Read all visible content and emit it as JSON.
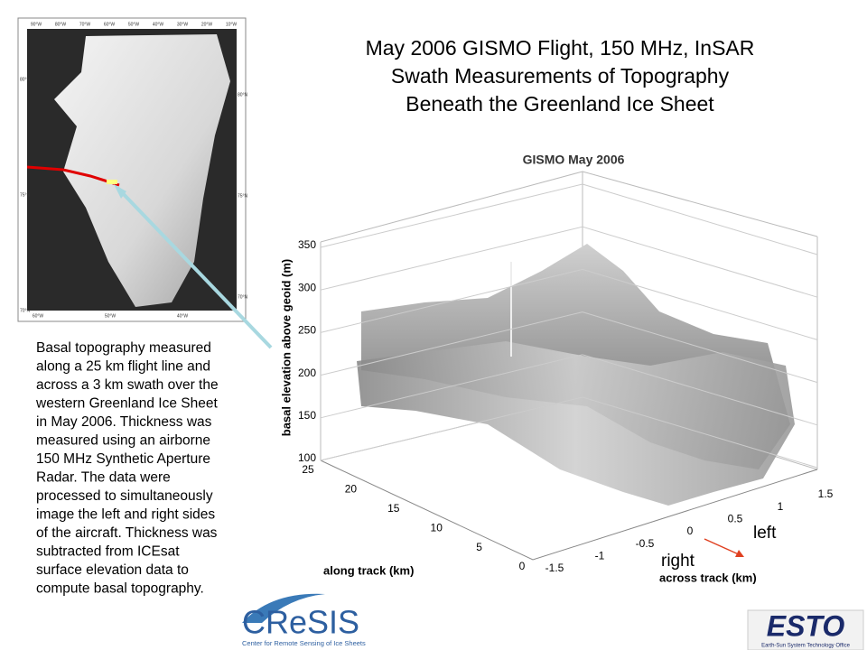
{
  "title": [
    "May 2006 GISMO Flight, 150 MHz, InSAR",
    "Swath Measurements of Topography",
    "Beneath the Greenland Ice Sheet"
  ],
  "map": {
    "top_labels": [
      "90°W",
      "80°W",
      "70°W",
      "60°W",
      "50°W",
      "40°W",
      "30°W",
      "20°W",
      "10°W"
    ],
    "left_labels": [
      "80°N",
      "75°N",
      "70°N"
    ],
    "right_labels": [
      "80°N",
      "75°N",
      "70°N"
    ],
    "bottom_labels": [
      "60°W",
      "50°W",
      "40°W"
    ]
  },
  "plot": {
    "title": "GISMO May 2006",
    "z_label": "basal elevation above geoid (m)",
    "z_ticks": [
      100,
      150,
      200,
      250,
      300,
      350
    ],
    "along_label": "along track (km)",
    "along_ticks": [
      0,
      5,
      10,
      15,
      20,
      25
    ],
    "across_label": "across track (km)",
    "across_ticks": [
      -1.5,
      -1,
      -0.5,
      0,
      0.5,
      1,
      1.5
    ],
    "left_annotation": "left",
    "right_annotation": "right"
  },
  "description": [
    "Basal topography measured",
    "along a 25 km flight line and",
    "across a 3 km swath over the",
    "western Greenland Ice Sheet",
    "in May 2006.  Thickness was",
    "measured using an airborne",
    "150 MHz Synthetic Aperture",
    "Radar. The data were",
    "processed to simultaneously",
    "image the left and right sides",
    "of the aircraft.  Thickness was",
    "subtracted from ICEsat",
    "surface elevation data to",
    "compute basal topography."
  ],
  "logos": {
    "cresis": "CReSIS",
    "cresis_sub": "Center for Remote Sensing of Ice Sheets",
    "esto": "ESTO",
    "esto_sub": "Earth-Sun System Technology Office"
  }
}
